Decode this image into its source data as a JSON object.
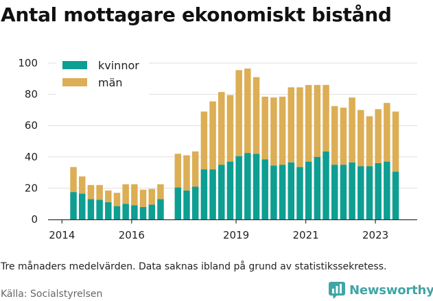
{
  "title": "Antal mottagare ekonomiskt bistånd",
  "note": "Tre månaders medelvärden. Data saknas ibland på grund av statistikssekretess.",
  "source": "Källa: Socialstyrelsen",
  "brand": {
    "name": "Newsworthy",
    "icon": "newsworthy-logo-icon",
    "color": "#41a5a5"
  },
  "colors": {
    "kvinnor": "#0e9e92",
    "man": "#dcae55",
    "grid": "#dddddd",
    "axis": "#333333"
  },
  "chart_data": {
    "type": "bar",
    "stacked": true,
    "title": "Antal mottagare ekonomiskt bistånd",
    "xlabel": "",
    "ylabel": "",
    "ylim": [
      0,
      100
    ],
    "yticks": [
      0,
      20,
      40,
      60,
      80,
      100
    ],
    "xticks": [
      {
        "label": "2014",
        "x": 2014.0
      },
      {
        "label": "2016",
        "x": 2016.0
      },
      {
        "label": "2019",
        "x": 2019.0
      },
      {
        "label": "2021",
        "x": 2021.0
      },
      {
        "label": "2023",
        "x": 2023.0
      }
    ],
    "xlim": [
      2013.6,
      2024.2
    ],
    "grid": true,
    "legend": "top-left",
    "x": [
      2014.33,
      2014.58,
      2014.83,
      2015.08,
      2015.33,
      2015.58,
      2015.83,
      2016.08,
      2016.33,
      2016.58,
      2016.83,
      2017.33,
      2017.58,
      2017.83,
      2018.08,
      2018.33,
      2018.58,
      2018.83,
      2019.08,
      2019.33,
      2019.58,
      2019.83,
      2020.08,
      2020.33,
      2020.58,
      2020.83,
      2021.08,
      2021.33,
      2021.58,
      2021.83,
      2022.08,
      2022.33,
      2022.58,
      2022.83,
      2023.08,
      2023.33,
      2023.58
    ],
    "series": [
      {
        "name": "kvinnor",
        "values": [
          17.5,
          16.5,
          13,
          12.5,
          11,
          8.5,
          10,
          9,
          8,
          9.5,
          13,
          20.5,
          18.5,
          21,
          32,
          32,
          35,
          37,
          40.5,
          42.5,
          42,
          38.5,
          34.5,
          35,
          36.5,
          33.5,
          37,
          40,
          43.5,
          35,
          35,
          36.5,
          34,
          34,
          36,
          37,
          30.5
        ]
      },
      {
        "name": "män",
        "values": [
          16,
          11,
          9,
          9.5,
          7.5,
          8.5,
          12.5,
          13.5,
          11,
          10,
          9.5,
          21.5,
          22.5,
          22.5,
          37,
          43.5,
          46.5,
          42.5,
          55,
          54,
          49,
          40,
          43.5,
          43.5,
          48,
          51,
          49,
          46,
          42.5,
          37.5,
          36.5,
          41.5,
          36,
          32,
          34.5,
          37.5,
          38.5
        ]
      }
    ]
  }
}
